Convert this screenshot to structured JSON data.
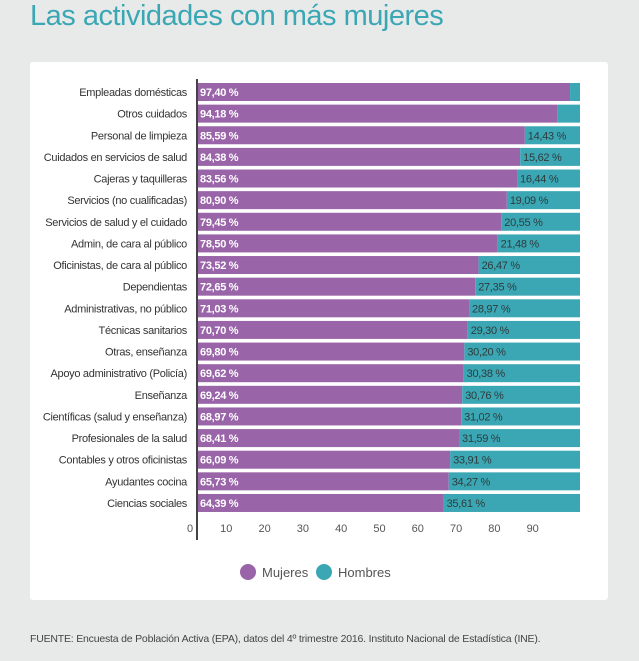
{
  "title": "Las actividades con más mujeres",
  "source": "FUENTE: Encuesta de Población Activa (EPA), datos del 4º trimestre 2016. Instituto Nacional de Estadística (INE).",
  "colors": {
    "mujeres": "#9964a8",
    "hombres": "#3ba7b4",
    "title": "#3ba7b4"
  },
  "chart_data": {
    "type": "bar",
    "orientation": "horizontal",
    "stacked": true,
    "categories": [
      "Empleadas domésticas",
      "Otros cuidados",
      "Personal de limpieza",
      "Cuidados en servicios de salud",
      "Cajeras y taquilleras",
      "Servicios (no cualificadas)",
      "Servicios de salud y el cuidado",
      "Admin, de cara al público",
      "Oficinistas, de cara al público",
      "Dependientas",
      "Administrativas, no público",
      "Técnicas sanitarios",
      "Otras, enseñanza",
      "Apoyo administrativo (Policía)",
      "Enseñanza",
      "Científicas (salud y enseñanza)",
      "Profesionales de la salud",
      "Contables y otros oficinistas",
      "Ayudantes cocina",
      "Ciencias sociales"
    ],
    "series": [
      {
        "name": "Mujeres",
        "values": [
          97.4,
          94.18,
          85.59,
          84.38,
          83.56,
          80.9,
          79.45,
          78.5,
          73.52,
          72.65,
          71.03,
          70.7,
          69.8,
          69.62,
          69.24,
          68.97,
          68.41,
          66.09,
          65.73,
          64.39
        ],
        "labels": [
          "97,40 %",
          "94,18 %",
          "85,59 %",
          "84,38 %",
          "83,56 %",
          "80,90 %",
          "79,45 %",
          "78,50 %",
          "73,52 %",
          "72,65 %",
          "71,03 %",
          "70,70 %",
          "69,80 %",
          "69,62 %",
          "69,24 %",
          "68,97 %",
          "68,41 %",
          "66,09 %",
          "65,73 %",
          "64,39 %"
        ]
      },
      {
        "name": "Hombres",
        "values": [
          2.6,
          5.82,
          14.43,
          15.62,
          16.44,
          19.09,
          20.55,
          21.48,
          26.47,
          27.35,
          28.97,
          29.3,
          30.2,
          30.38,
          30.76,
          31.02,
          31.59,
          33.91,
          34.27,
          35.61
        ],
        "labels": [
          "",
          "",
          "14,43 %",
          "15,62 %",
          "16,44 %",
          "19,09 %",
          "20,55 %",
          "21,48 %",
          "26,47 %",
          "27,35 %",
          "28,97 %",
          "29,30 %",
          "30,20 %",
          "30,38 %",
          "30,76 %",
          "31,02 %",
          "31,59 %",
          "33,91 %",
          "34,27 %",
          "35,61 %"
        ]
      }
    ],
    "xticks": [
      "0",
      "10",
      "20",
      "30",
      "40",
      "50",
      "60",
      "70",
      "80",
      "90"
    ],
    "xlim": [
      0,
      100
    ],
    "grid": false,
    "legend": "bottom-center"
  }
}
